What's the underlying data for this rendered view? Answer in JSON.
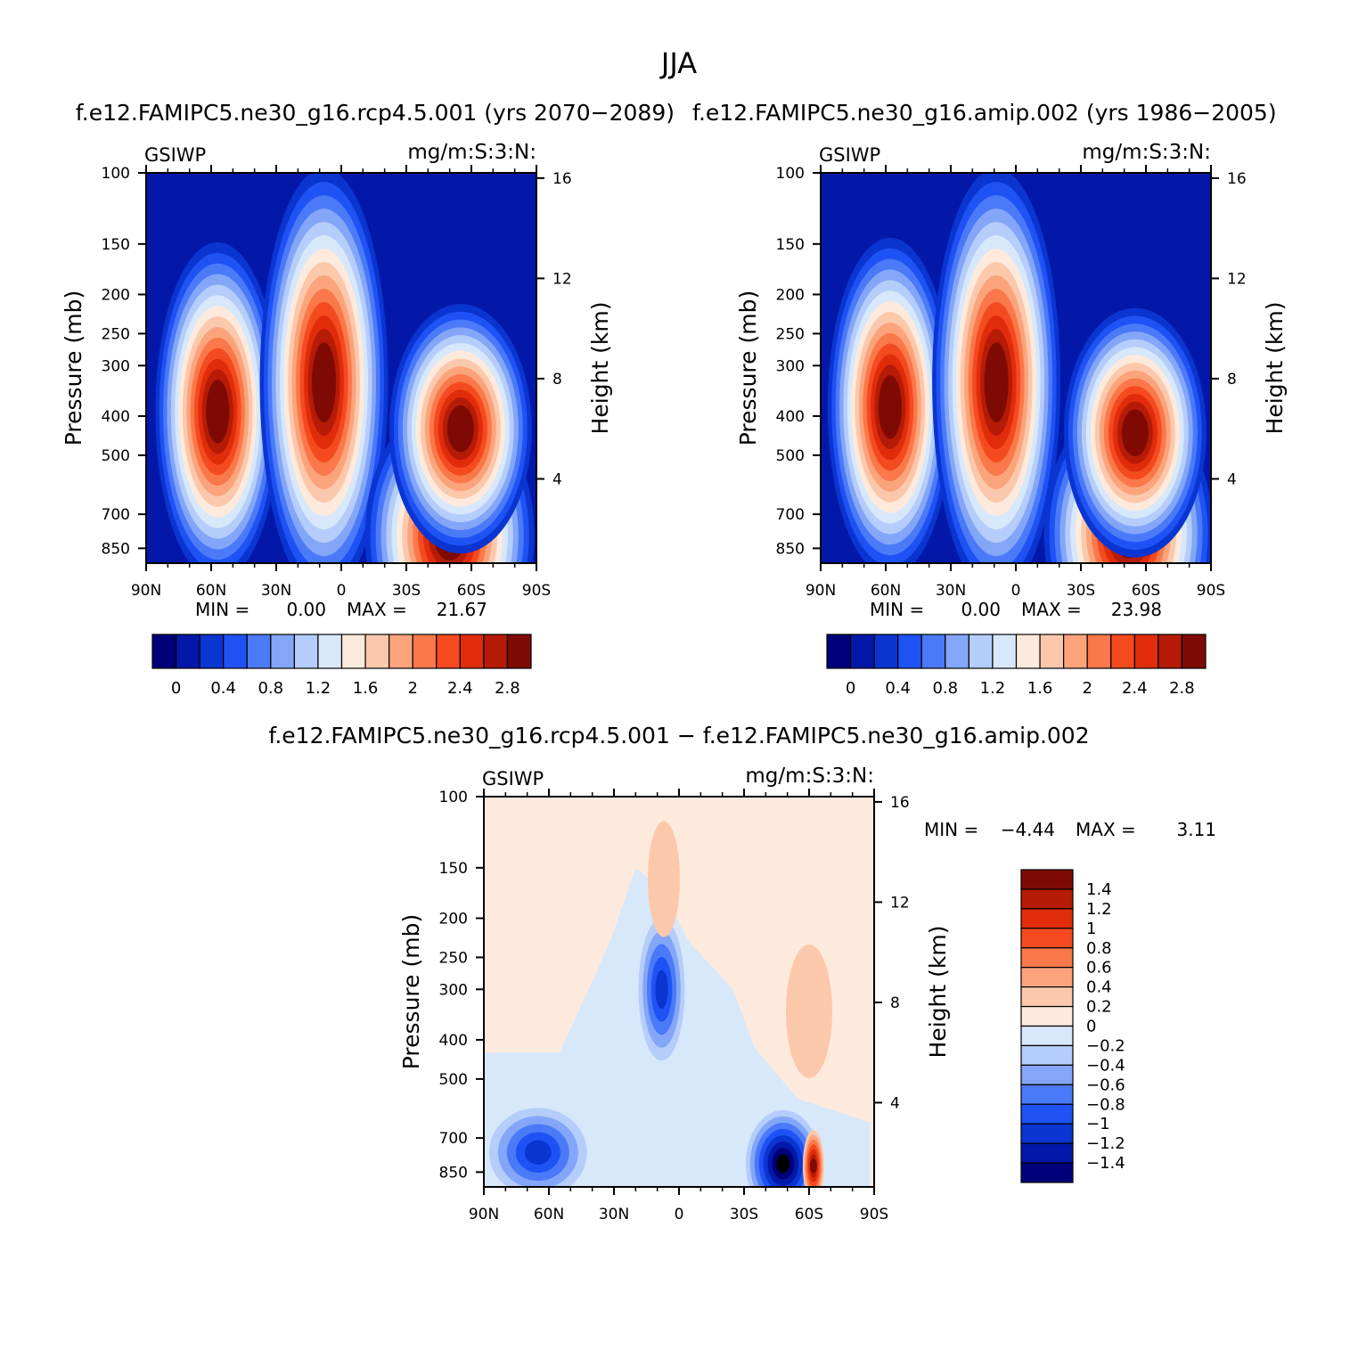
{
  "figure": {
    "title": "JJA"
  },
  "chart_data": [
    {
      "type": "heatmap",
      "title": "f.e12.FAMIPC5.ne30_g16.rcp4.5.001 (yrs 2070-2089)",
      "left_label": "GSIWP",
      "right_label": "mg/m:S:3:N:",
      "xlabel": "",
      "ylabel": "Pressure (mb)",
      "y2label": "Height (km)",
      "x_ticks": [
        "90N",
        "60N",
        "30N",
        "0",
        "30S",
        "60S",
        "90S"
      ],
      "y_ticks": [
        "100",
        "150",
        "200",
        "250",
        "300",
        "400",
        "500",
        "700",
        "850"
      ],
      "y2_ticks": [
        "4",
        "8",
        "12",
        "16"
      ],
      "y_scale": "log",
      "ylim": [
        100,
        925
      ],
      "xlim": [
        90,
        -90
      ],
      "stats": {
        "min_label": "MIN =",
        "min": "0.00",
        "max_label": "MAX =",
        "max": "21.67"
      },
      "colorbar": {
        "orientation": "horizontal",
        "labels": [
          "0",
          "0.4",
          "0.8",
          "1.2",
          "1.6",
          "2",
          "2.4",
          "2.8"
        ],
        "colors": [
          "#00007a",
          "#0318a8",
          "#0a35d0",
          "#1f52f5",
          "#4a7af8",
          "#84a6f8",
          "#b5cdfa",
          "#d8e8fb",
          "#feeadc",
          "#fcc8ac",
          "#fba47c",
          "#fa784a",
          "#f54a1f",
          "#e02c0b",
          "#b51b06",
          "#7f0a04"
        ]
      },
      "features": [
        {
          "lat": 57,
          "p": 390,
          "value": 3.2
        },
        {
          "lat": 8,
          "p": 330,
          "value": 5.0
        },
        {
          "lat": -50,
          "p": 790,
          "value": 6.0
        },
        {
          "lat": -55,
          "p": 430,
          "value": 2.8
        }
      ]
    },
    {
      "type": "heatmap",
      "title": "f.e12.FAMIPC5.ne30_g16.amip.002 (yrs 1986-2005)",
      "left_label": "GSIWP",
      "right_label": "mg/m:S:3:N:",
      "xlabel": "",
      "ylabel": "Pressure (mb)",
      "y2label": "Height (km)",
      "x_ticks": [
        "90N",
        "60N",
        "30N",
        "0",
        "30S",
        "60S",
        "90S"
      ],
      "y_ticks": [
        "100",
        "150",
        "200",
        "250",
        "300",
        "400",
        "500",
        "700",
        "850"
      ],
      "y2_ticks": [
        "4",
        "8",
        "12",
        "16"
      ],
      "y_scale": "log",
      "ylim": [
        100,
        925
      ],
      "xlim": [
        90,
        -90
      ],
      "stats": {
        "min_label": "MIN =",
        "min": "0.00",
        "max_label": "MAX =",
        "max": "23.98"
      },
      "colorbar": {
        "orientation": "horizontal",
        "labels": [
          "0",
          "0.4",
          "0.8",
          "1.2",
          "1.6",
          "2",
          "2.4",
          "2.8"
        ],
        "colors": [
          "#00007a",
          "#0318a8",
          "#0a35d0",
          "#1f52f5",
          "#4a7af8",
          "#84a6f8",
          "#b5cdfa",
          "#d8e8fb",
          "#feeadc",
          "#fcc8ac",
          "#fba47c",
          "#fa784a",
          "#f54a1f",
          "#e02c0b",
          "#b51b06",
          "#7f0a04"
        ]
      },
      "features": [
        {
          "lat": 58,
          "p": 380,
          "value": 3.0
        },
        {
          "lat": 9,
          "p": 330,
          "value": 5.0
        },
        {
          "lat": -52,
          "p": 780,
          "value": 6.0
        },
        {
          "lat": -55,
          "p": 440,
          "value": 2.7
        }
      ]
    },
    {
      "type": "heatmap",
      "title": "f.e12.FAMIPC5.ne30_g16.rcp4.5.001 - f.e12.FAMIPC5.ne30_g16.amip.002",
      "left_label": "GSIWP",
      "right_label": "mg/m:S:3:N:",
      "xlabel": "",
      "ylabel": "Pressure (mb)",
      "y2label": "Height (km)",
      "x_ticks": [
        "90N",
        "60N",
        "30N",
        "0",
        "30S",
        "60S",
        "90S"
      ],
      "y_ticks": [
        "100",
        "150",
        "200",
        "250",
        "300",
        "400",
        "500",
        "700",
        "850"
      ],
      "y2_ticks": [
        "4",
        "8",
        "12",
        "16"
      ],
      "y_scale": "log",
      "ylim": [
        100,
        925
      ],
      "xlim": [
        90,
        -90
      ],
      "stats": {
        "min_label": "MIN =",
        "min": "-4.44",
        "max_label": "MAX =",
        "max": "3.11"
      },
      "colorbar": {
        "orientation": "vertical",
        "labels": [
          "1.4",
          "1.2",
          "1",
          "0.8",
          "0.6",
          "0.4",
          "0.2",
          "0",
          "-0.2",
          "-0.4",
          "-0.6",
          "-0.8",
          "-1",
          "-1.2",
          "-1.4"
        ],
        "colors": [
          "#7f0a04",
          "#b51b06",
          "#e02c0b",
          "#f54a1f",
          "#fa784a",
          "#fba47c",
          "#fcc8ac",
          "#feeadc",
          "#d8e8fb",
          "#b5cdfa",
          "#84a6f8",
          "#4a7af8",
          "#1f52f5",
          "#0a35d0",
          "#0318a8",
          "#00007a"
        ]
      },
      "features": [
        {
          "lat": 8,
          "p": 300,
          "value": -1.0
        },
        {
          "lat": 65,
          "p": 760,
          "value": -1.0
        },
        {
          "lat": -48,
          "p": 810,
          "value": -4.4
        },
        {
          "lat": -62,
          "p": 820,
          "value": 3.1
        },
        {
          "lat": 7,
          "p": 160,
          "value": 0.3
        },
        {
          "lat": -60,
          "p": 340,
          "value": 0.3
        }
      ]
    }
  ]
}
